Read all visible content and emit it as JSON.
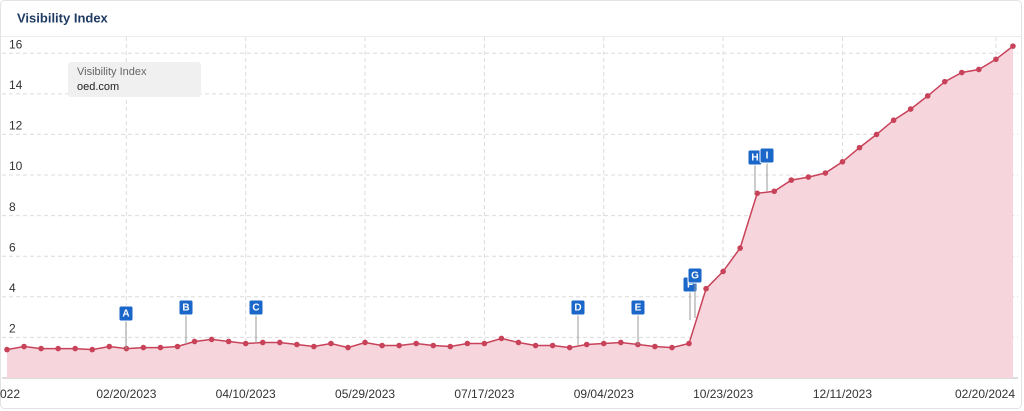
{
  "chart_data": {
    "type": "line",
    "title": "Visibility Index",
    "legend_title": "Visibility Index",
    "categories": [
      "022",
      null,
      null,
      null,
      null,
      null,
      null,
      "02/20/2023",
      null,
      null,
      null,
      null,
      null,
      null,
      "04/10/2023",
      null,
      null,
      null,
      null,
      null,
      null,
      "05/29/2023",
      null,
      null,
      null,
      null,
      null,
      null,
      "07/17/2023",
      null,
      null,
      null,
      null,
      null,
      null,
      "09/04/2023",
      null,
      null,
      null,
      null,
      null,
      null,
      "10/23/2023",
      null,
      null,
      null,
      null,
      null,
      null,
      "12/11/2023",
      null,
      null,
      null,
      null,
      null,
      null,
      null,
      null,
      "02/20/2024",
      null
    ],
    "series": [
      {
        "name": "oed.com",
        "color": "#c84259",
        "fill": "#f6d5dc",
        "values": [
          1.4,
          1.55,
          1.45,
          1.45,
          1.45,
          1.4,
          1.55,
          1.45,
          1.5,
          1.5,
          1.55,
          1.8,
          1.9,
          1.8,
          1.7,
          1.75,
          1.75,
          1.65,
          1.55,
          1.7,
          1.5,
          1.75,
          1.6,
          1.6,
          1.7,
          1.6,
          1.55,
          1.7,
          1.7,
          1.95,
          1.75,
          1.6,
          1.6,
          1.5,
          1.65,
          1.7,
          1.75,
          1.65,
          1.55,
          1.5,
          1.7,
          4.4,
          5.25,
          6.4,
          9.1,
          9.2,
          9.75,
          9.9,
          10.1,
          10.65,
          11.35,
          12,
          12.7,
          13.25,
          13.9,
          14.6,
          15.05,
          15.2,
          15.7,
          16.35
        ]
      }
    ],
    "annotations": [
      "A",
      "B",
      "C",
      "D",
      "E",
      "F",
      "G",
      "H",
      "I"
    ],
    "ylim": [
      0,
      16.8
    ],
    "yticks": [
      2,
      4,
      6,
      8,
      10,
      12,
      14,
      16
    ],
    "grid": true
  }
}
